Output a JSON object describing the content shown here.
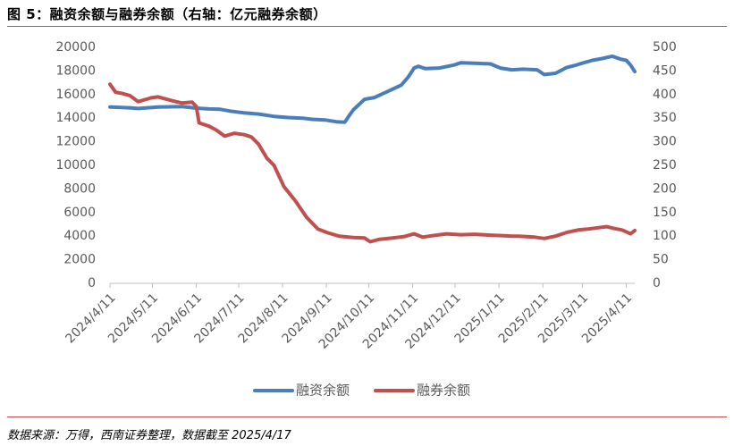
{
  "header": {
    "title": "图 5：融资余额与融券余额（右轴：亿元融券余额）"
  },
  "footer": {
    "source": "数据来源：万得，西南证券整理，数据截至 2025/4/17"
  },
  "colors": {
    "financing": "#4a7ebb",
    "securities_lending": "#c0504d",
    "accent_rule": "#c0504d",
    "axis": "#bfbfbf",
    "tick_text": "#595959"
  },
  "chart_data": {
    "type": "line",
    "grid": false,
    "legend_position": "bottom",
    "x": {
      "type": "date",
      "ticks": [
        "2024/4/11",
        "2024/5/11",
        "2024/6/11",
        "2024/7/11",
        "2024/8/11",
        "2024/9/11",
        "2024/10/11",
        "2024/11/11",
        "2024/12/11",
        "2025/1/11",
        "2025/2/11",
        "2025/3/11",
        "2025/4/11"
      ],
      "range": [
        "2024/4/11",
        "2025/4/17"
      ]
    },
    "y_left": {
      "range": [
        0,
        20000
      ],
      "ticks": [
        0,
        2000,
        4000,
        6000,
        8000,
        10000,
        12000,
        14000,
        16000,
        18000,
        20000
      ]
    },
    "y_right": {
      "range": [
        0,
        500
      ],
      "ticks": [
        0,
        50,
        100,
        150,
        200,
        250,
        300,
        350,
        400,
        450,
        500
      ]
    },
    "series": [
      {
        "name": "融资余额",
        "axis": "left",
        "points": [
          [
            "2024/4/11",
            14950
          ],
          [
            "2024/4/25",
            14880
          ],
          [
            "2024/5/1",
            14820
          ],
          [
            "2024/5/15",
            14950
          ],
          [
            "2024/6/1",
            14980
          ],
          [
            "2024/6/11",
            14850
          ],
          [
            "2024/6/20",
            14780
          ],
          [
            "2024/6/28",
            14750
          ],
          [
            "2024/7/5",
            14600
          ],
          [
            "2024/7/15",
            14450
          ],
          [
            "2024/7/25",
            14350
          ],
          [
            "2024/8/5",
            14150
          ],
          [
            "2024/8/15",
            14050
          ],
          [
            "2024/8/25",
            14000
          ],
          [
            "2024/9/1",
            13900
          ],
          [
            "2024/9/10",
            13850
          ],
          [
            "2024/9/18",
            13700
          ],
          [
            "2024/9/24",
            13650
          ],
          [
            "2024/9/27",
            14200
          ],
          [
            "2024/9/30",
            14700
          ],
          [
            "2024/10/8",
            15600
          ],
          [
            "2024/10/15",
            15750
          ],
          [
            "2024/10/25",
            16300
          ],
          [
            "2024/11/3",
            16800
          ],
          [
            "2024/11/8",
            17500
          ],
          [
            "2024/11/12",
            18250
          ],
          [
            "2024/11/15",
            18400
          ],
          [
            "2024/11/20",
            18200
          ],
          [
            "2024/11/30",
            18250
          ],
          [
            "2024/12/10",
            18500
          ],
          [
            "2024/12/15",
            18700
          ],
          [
            "2024/12/25",
            18650
          ],
          [
            "2025/1/5",
            18600
          ],
          [
            "2025/1/12",
            18250
          ],
          [
            "2025/1/20",
            18100
          ],
          [
            "2025/1/28",
            18150
          ],
          [
            "2025/2/7",
            18100
          ],
          [
            "2025/2/12",
            17700
          ],
          [
            "2025/2/20",
            17800
          ],
          [
            "2025/2/28",
            18300
          ],
          [
            "2025/3/5",
            18450
          ],
          [
            "2025/3/12",
            18700
          ],
          [
            "2025/3/18",
            18900
          ],
          [
            "2025/3/25",
            19050
          ],
          [
            "2025/4/1",
            19250
          ],
          [
            "2025/4/7",
            19000
          ],
          [
            "2025/4/11",
            18900
          ],
          [
            "2025/4/14",
            18500
          ],
          [
            "2025/4/17",
            17950
          ]
        ]
      },
      {
        "name": "融券余额",
        "axis": "right",
        "points": [
          [
            "2024/4/11",
            422
          ],
          [
            "2024/4/15",
            405
          ],
          [
            "2024/4/20",
            402
          ],
          [
            "2024/4/25",
            398
          ],
          [
            "2024/5/1",
            385
          ],
          [
            "2024/5/10",
            393
          ],
          [
            "2024/5/15",
            395
          ],
          [
            "2024/5/25",
            387
          ],
          [
            "2024/6/1",
            382
          ],
          [
            "2024/6/8",
            384
          ],
          [
            "2024/6/11",
            375
          ],
          [
            "2024/6/13",
            340
          ],
          [
            "2024/6/20",
            333
          ],
          [
            "2024/6/25",
            325
          ],
          [
            "2024/7/1",
            312
          ],
          [
            "2024/7/8",
            318
          ],
          [
            "2024/7/15",
            315
          ],
          [
            "2024/7/20",
            310
          ],
          [
            "2024/7/25",
            295
          ],
          [
            "2024/7/28",
            280
          ],
          [
            "2024/7/31",
            265
          ],
          [
            "2024/8/5",
            250
          ],
          [
            "2024/8/12",
            205
          ],
          [
            "2024/8/20",
            175
          ],
          [
            "2024/8/28",
            140
          ],
          [
            "2024/9/5",
            115
          ],
          [
            "2024/9/12",
            107
          ],
          [
            "2024/9/20",
            100
          ],
          [
            "2024/9/30",
            97
          ],
          [
            "2024/10/8",
            96
          ],
          [
            "2024/10/12",
            88
          ],
          [
            "2024/10/18",
            93
          ],
          [
            "2024/10/25",
            95
          ],
          [
            "2024/11/5",
            99
          ],
          [
            "2024/11/12",
            105
          ],
          [
            "2024/11/18",
            98
          ],
          [
            "2024/11/25",
            101
          ],
          [
            "2024/12/5",
            105
          ],
          [
            "2024/12/15",
            103
          ],
          [
            "2024/12/25",
            104
          ],
          [
            "2025/1/5",
            102
          ],
          [
            "2025/1/15",
            101
          ],
          [
            "2025/1/20",
            100
          ],
          [
            "2025/1/25",
            100
          ],
          [
            "2025/2/5",
            98
          ],
          [
            "2025/2/12",
            95
          ],
          [
            "2025/2/20",
            100
          ],
          [
            "2025/2/28",
            108
          ],
          [
            "2025/3/8",
            113
          ],
          [
            "2025/3/15",
            115
          ],
          [
            "2025/3/20",
            117
          ],
          [
            "2025/3/28",
            120
          ],
          [
            "2025/4/3",
            116
          ],
          [
            "2025/4/8",
            113
          ],
          [
            "2025/4/14",
            105
          ],
          [
            "2025/4/17",
            112
          ]
        ]
      }
    ]
  }
}
